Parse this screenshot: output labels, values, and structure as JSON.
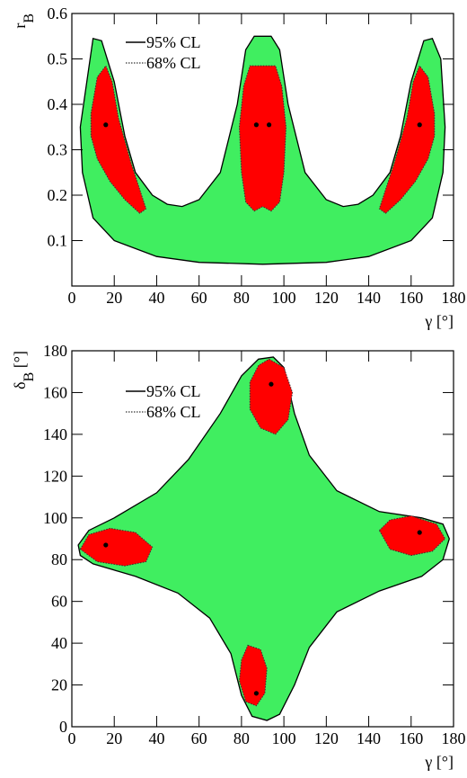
{
  "chart_data": [
    {
      "type": "contour",
      "x_label": "γ [°]",
      "y_label": [
        "r",
        "B"
      ],
      "xlim": [
        0,
        180
      ],
      "xticks": [
        0,
        20,
        40,
        60,
        80,
        100,
        120,
        140,
        160,
        180
      ],
      "ylim": [
        0,
        0.6
      ],
      "yticks": [
        0.1,
        0.2,
        0.3,
        0.4,
        0.5,
        0.6
      ],
      "series": [
        {
          "name": "95% CL",
          "color": "#40ee60",
          "polygons": [
            {
              "x": [
                4,
                10,
                14,
                20,
                25,
                30,
                38,
                45,
                52,
                60,
                70,
                78,
                82,
                86,
                94,
                98,
                102,
                110,
                120,
                128,
                135,
                142,
                150,
                155,
                160,
                166,
                170,
                174,
                176,
                175,
                170,
                160,
                140,
                120,
                90,
                60,
                40,
                20,
                10,
                5
              ],
              "y": [
                0.35,
                0.545,
                0.54,
                0.45,
                0.33,
                0.25,
                0.2,
                0.18,
                0.175,
                0.19,
                0.25,
                0.4,
                0.52,
                0.55,
                0.55,
                0.52,
                0.4,
                0.25,
                0.19,
                0.175,
                0.18,
                0.2,
                0.25,
                0.33,
                0.45,
                0.54,
                0.545,
                0.5,
                0.35,
                0.25,
                0.15,
                0.1,
                0.065,
                0.052,
                0.048,
                0.052,
                0.065,
                0.1,
                0.15,
                0.25
              ]
            }
          ]
        },
        {
          "name": "68% CL",
          "color": "#ff0000",
          "polygons": [
            {
              "x": [
                9,
                12,
                16,
                19,
                22,
                28,
                35,
                32,
                25,
                18,
                12,
                9
              ],
              "y": [
                0.38,
                0.46,
                0.485,
                0.45,
                0.37,
                0.27,
                0.17,
                0.16,
                0.19,
                0.23,
                0.28,
                0.33
              ]
            },
            {
              "x": [
                79,
                81,
                84,
                96,
                99,
                101,
                100,
                98,
                94,
                90,
                86,
                82,
                80
              ],
              "y": [
                0.35,
                0.44,
                0.485,
                0.485,
                0.44,
                0.35,
                0.25,
                0.185,
                0.165,
                0.175,
                0.165,
                0.185,
                0.25
              ]
            },
            {
              "x": [
                171,
                168,
                164,
                161,
                158,
                152,
                145,
                148,
                155,
                162,
                168,
                171
              ],
              "y": [
                0.38,
                0.46,
                0.485,
                0.45,
                0.37,
                0.27,
                0.17,
                0.16,
                0.19,
                0.23,
                0.28,
                0.33
              ]
            }
          ]
        }
      ],
      "points": {
        "color": "#000000",
        "x": [
          16,
          87,
          93,
          164
        ],
        "y": [
          0.355,
          0.355,
          0.355,
          0.355
        ]
      }
    },
    {
      "type": "contour",
      "x_label": "γ [°]",
      "y_label": [
        "δ",
        "B",
        " [°]"
      ],
      "xlim": [
        0,
        180
      ],
      "xticks": [
        0,
        20,
        40,
        60,
        80,
        100,
        120,
        140,
        160,
        180
      ],
      "ylim": [
        0,
        180
      ],
      "yticks": [
        0,
        20,
        40,
        60,
        80,
        100,
        120,
        140,
        160,
        180
      ],
      "series": [
        {
          "name": "95% CL",
          "color": "#40ee60",
          "polygons": [
            {
              "x": [
                3,
                8,
                20,
                40,
                55,
                70,
                80,
                88,
                95,
                100,
                105,
                112,
                125,
                145,
                165,
                175,
                178,
                175,
                165,
                145,
                125,
                112,
                105,
                98,
                92,
                85,
                80,
                75,
                65,
                50,
                30,
                10,
                4
              ],
              "y": [
                87,
                94,
                100,
                112,
                128,
                150,
                168,
                176,
                177,
                172,
                150,
                130,
                113,
                103,
                100,
                97,
                90,
                80,
                72,
                65,
                55,
                38,
                20,
                6,
                3,
                5,
                15,
                35,
                52,
                64,
                72,
                78,
                82
              ]
            }
          ]
        },
        {
          "name": "68% CL",
          "color": "#ff0000",
          "polygons": [
            {
              "x": [
                93,
                100,
                104,
                102,
                96,
                89,
                84,
                84,
                88
              ],
              "y": [
                176,
                172,
                160,
                147,
                140,
                143,
                152,
                165,
                173
              ]
            },
            {
              "x": [
                4,
                8,
                18,
                30,
                38,
                35,
                25,
                12
              ],
              "y": [
                85,
                92,
                95,
                93,
                86,
                79,
                77,
                79
              ]
            },
            {
              "x": [
                145,
                150,
                160,
                172,
                176,
                170,
                160,
                150
              ],
              "y": [
                94,
                99,
                101,
                97,
                90,
                84,
                82,
                85
              ]
            },
            {
              "x": [
                83,
                89,
                92,
                91,
                87,
                82,
                79,
                80
              ],
              "y": [
                39,
                37,
                28,
                16,
                10,
                12,
                22,
                32
              ]
            }
          ]
        }
      ],
      "points": {
        "color": "#000000",
        "x": [
          16,
          94,
          164,
          87
        ],
        "y": [
          87,
          164,
          93,
          16
        ]
      }
    }
  ]
}
